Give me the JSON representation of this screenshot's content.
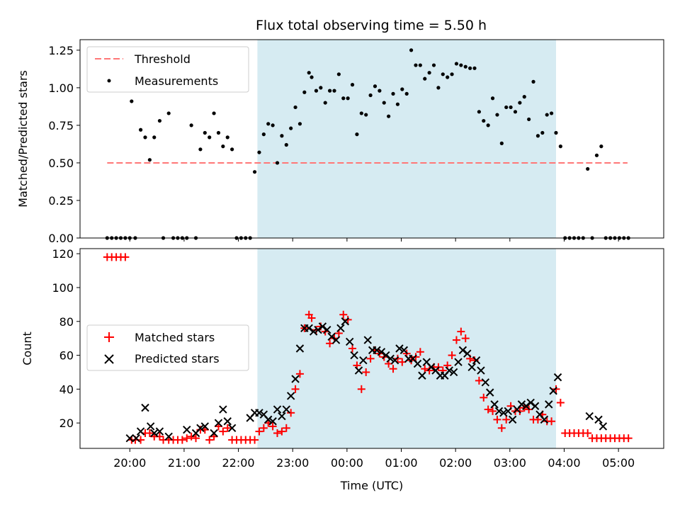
{
  "figure_title": "Flux total observing time = 5.50 h",
  "colors": {
    "threshold": "#ff7777",
    "measurements": "#000000",
    "matched": "#ff0000",
    "predicted": "#000000",
    "span": "#add8e6"
  },
  "chart_data": [
    {
      "type": "scatter",
      "panel": "top",
      "title": "Flux total observing time = 5.50 h",
      "xlabel": "",
      "ylabel": "Matched/Predicted stars",
      "xlim": [
        "19:05",
        "05:50"
      ],
      "ylim": [
        0,
        1.32
      ],
      "yticks": [
        "0.00",
        "0.25",
        "0.50",
        "0.75",
        "1.00",
        "1.25"
      ],
      "grid": false,
      "legend_position": "upper-left",
      "shaded_span": [
        "22:21",
        "03:51"
      ],
      "threshold": {
        "name": "Threshold",
        "y": 0.5,
        "x": [
          "19:35",
          "05:10"
        ],
        "style": "dashed"
      },
      "series": [
        {
          "name": "Measurements",
          "x": [
            "19:35",
            "19:40",
            "19:45",
            "19:50",
            "19:55",
            "20:00",
            "20:02",
            "20:06",
            "20:12",
            "20:17",
            "20:22",
            "20:27",
            "20:33",
            "20:37",
            "20:43",
            "20:48",
            "20:53",
            "20:58",
            "21:03",
            "21:08",
            "21:13",
            "21:18",
            "21:23",
            "21:28",
            "21:33",
            "21:38",
            "21:43",
            "21:48",
            "21:53",
            "21:58",
            "22:03",
            "22:08",
            "22:13",
            "22:18",
            "22:23",
            "22:28",
            "22:33",
            "22:38",
            "22:43",
            "22:48",
            "22:53",
            "22:58",
            "23:03",
            "23:08",
            "23:13",
            "23:18",
            "23:21",
            "23:26",
            "23:31",
            "23:36",
            "23:41",
            "23:46",
            "23:51",
            "23:56",
            "00:01",
            "00:06",
            "00:11",
            "00:16",
            "00:21",
            "00:26",
            "00:31",
            "00:36",
            "00:41",
            "00:46",
            "00:51",
            "00:56",
            "01:01",
            "01:06",
            "01:11",
            "01:16",
            "01:21",
            "01:26",
            "01:31",
            "01:36",
            "01:41",
            "01:46",
            "01:51",
            "01:56",
            "02:01",
            "02:06",
            "02:11",
            "02:16",
            "02:21",
            "02:26",
            "02:31",
            "02:36",
            "02:41",
            "02:46",
            "02:51",
            "02:56",
            "03:01",
            "03:06",
            "03:11",
            "03:16",
            "03:21",
            "03:26",
            "03:31",
            "03:36",
            "03:41",
            "03:46",
            "03:51",
            "03:56",
            "04:01",
            "04:06",
            "04:11",
            "04:16",
            "04:21",
            "04:26",
            "04:31",
            "04:36",
            "04:41",
            "04:46",
            "04:51",
            "04:56",
            "05:01",
            "05:06",
            "05:11"
          ],
          "y": [
            0,
            0,
            0,
            0,
            0,
            0,
            0.91,
            0,
            0.72,
            0.67,
            0.52,
            0.67,
            0.78,
            0,
            0.83,
            0,
            0,
            0,
            0,
            0.75,
            0,
            0.59,
            0.7,
            0.67,
            0.83,
            0.7,
            0.61,
            0.67,
            0.59,
            0,
            0,
            0,
            0,
            0.44,
            0.57,
            0.69,
            0.76,
            0.75,
            0.5,
            0.68,
            0.62,
            0.73,
            0.87,
            0.76,
            0.97,
            1.1,
            1.07,
            0.98,
            1.0,
            0.9,
            0.98,
            0.98,
            1.09,
            0.93,
            0.93,
            1.02,
            0.69,
            0.83,
            0.82,
            0.95,
            1.01,
            0.98,
            0.9,
            0.81,
            0.96,
            0.89,
            0.99,
            0.96,
            1.25,
            1.15,
            1.15,
            1.06,
            1.1,
            1.15,
            1.0,
            1.09,
            1.07,
            1.09,
            1.16,
            1.15,
            1.14,
            1.13,
            1.13,
            0.84,
            0.78,
            0.75,
            0.93,
            0.82,
            0.63,
            0.87,
            0.87,
            0.84,
            0.9,
            0.94,
            0.79,
            1.04,
            0.68,
            0.7,
            0.82,
            0.83,
            0.7,
            0.61,
            0,
            0,
            0,
            0,
            0,
            0.46,
            0,
            0.55,
            0.61,
            0,
            0,
            0,
            0,
            0,
            0
          ]
        }
      ]
    },
    {
      "type": "scatter",
      "panel": "bottom",
      "xlabel": "Time (UTC)",
      "ylabel": "Count",
      "xlim": [
        "19:05",
        "05:50"
      ],
      "ylim": [
        5,
        123
      ],
      "xticks": [
        "20:00",
        "21:00",
        "22:00",
        "23:00",
        "00:00",
        "01:00",
        "02:00",
        "03:00",
        "04:00",
        "05:00"
      ],
      "yticks": [
        "20",
        "40",
        "60",
        "80",
        "100",
        "120"
      ],
      "grid": false,
      "legend_position": "center-left",
      "shaded_span": [
        "22:21",
        "03:51"
      ],
      "series": [
        {
          "name": "Matched stars",
          "marker": "+",
          "x": [
            "19:35",
            "19:40",
            "19:45",
            "19:50",
            "19:55",
            "20:02",
            "20:06",
            "20:12",
            "20:17",
            "20:22",
            "20:27",
            "20:33",
            "20:37",
            "20:43",
            "20:48",
            "20:53",
            "20:58",
            "21:03",
            "21:08",
            "21:13",
            "21:18",
            "21:23",
            "21:28",
            "21:33",
            "21:38",
            "21:43",
            "21:48",
            "21:53",
            "21:58",
            "22:03",
            "22:08",
            "22:13",
            "22:18",
            "22:23",
            "22:28",
            "22:33",
            "22:38",
            "22:43",
            "22:48",
            "22:53",
            "22:58",
            "23:03",
            "23:08",
            "23:13",
            "23:18",
            "23:21",
            "23:26",
            "23:31",
            "23:36",
            "23:41",
            "23:46",
            "23:51",
            "23:56",
            "00:01",
            "00:06",
            "00:11",
            "00:16",
            "00:21",
            "00:26",
            "00:31",
            "00:36",
            "00:41",
            "00:46",
            "00:51",
            "00:56",
            "01:01",
            "01:06",
            "01:11",
            "01:16",
            "01:21",
            "01:26",
            "01:31",
            "01:36",
            "01:41",
            "01:46",
            "01:51",
            "01:56",
            "02:01",
            "02:06",
            "02:11",
            "02:16",
            "02:21",
            "02:26",
            "02:31",
            "02:36",
            "02:41",
            "02:46",
            "02:51",
            "02:56",
            "03:01",
            "03:06",
            "03:11",
            "03:16",
            "03:21",
            "03:26",
            "03:31",
            "03:36",
            "03:41",
            "03:46",
            "03:51",
            "03:56",
            "04:01",
            "04:06",
            "04:11",
            "04:16",
            "04:21",
            "04:26",
            "04:31",
            "04:36",
            "04:41",
            "04:46",
            "04:51",
            "04:56",
            "05:01",
            "05:06",
            "05:11"
          ],
          "y": [
            118,
            118,
            118,
            118,
            118,
            10,
            10,
            10,
            14,
            14,
            12,
            12,
            10,
            10,
            10,
            10,
            10,
            11,
            12,
            11,
            16,
            16,
            10,
            12,
            18,
            15,
            17,
            10,
            10,
            10,
            10,
            10,
            10,
            15,
            17,
            20,
            18,
            14,
            15,
            17,
            26,
            40,
            49,
            76,
            84,
            82,
            75,
            77,
            74,
            67,
            70,
            73,
            84,
            81,
            64,
            54,
            40,
            50,
            58,
            63,
            61,
            59,
            55,
            52,
            58,
            56,
            61,
            57,
            59,
            62,
            52,
            51,
            53,
            53,
            51,
            54,
            60,
            69,
            74,
            70,
            58,
            57,
            45,
            35,
            28,
            27,
            22,
            17,
            22,
            30,
            27,
            27,
            29,
            28,
            22,
            22,
            25,
            21,
            21,
            40,
            32,
            14,
            14,
            14,
            14,
            14,
            14,
            11,
            11,
            11,
            11,
            11,
            11,
            11,
            11,
            11
          ]
        },
        {
          "name": "Predicted stars",
          "marker": "x",
          "x": [
            "20:00",
            "20:07",
            "20:12",
            "20:17",
            "20:23",
            "20:27",
            "20:33",
            "20:43",
            "21:03",
            "21:13",
            "21:18",
            "21:23",
            "21:33",
            "21:38",
            "21:43",
            "21:48",
            "21:53",
            "22:13",
            "22:18",
            "22:23",
            "22:28",
            "22:33",
            "22:38",
            "22:43",
            "22:48",
            "22:53",
            "22:58",
            "23:03",
            "23:08",
            "23:13",
            "23:18",
            "23:23",
            "23:28",
            "23:33",
            "23:38",
            "23:43",
            "23:48",
            "23:53",
            "23:58",
            "00:03",
            "00:08",
            "00:13",
            "00:18",
            "00:23",
            "00:28",
            "00:33",
            "00:38",
            "00:43",
            "00:48",
            "00:53",
            "00:58",
            "01:03",
            "01:08",
            "01:13",
            "01:18",
            "01:23",
            "01:28",
            "01:33",
            "01:38",
            "01:43",
            "01:48",
            "01:53",
            "01:58",
            "02:03",
            "02:08",
            "02:13",
            "02:18",
            "02:23",
            "02:28",
            "02:33",
            "02:38",
            "02:43",
            "02:48",
            "02:53",
            "02:58",
            "03:03",
            "03:08",
            "03:13",
            "03:18",
            "03:23",
            "03:28",
            "03:33",
            "03:38",
            "03:43",
            "03:48",
            "03:53",
            "04:28",
            "04:38",
            "04:43"
          ],
          "y": [
            11,
            11,
            15,
            29,
            18,
            14,
            15,
            12,
            16,
            14,
            17,
            18,
            14,
            20,
            28,
            21,
            17,
            23,
            26,
            26,
            25,
            22,
            21,
            28,
            24,
            28,
            36,
            46,
            64,
            76,
            76,
            74,
            75,
            77,
            75,
            71,
            69,
            76,
            80,
            68,
            60,
            51,
            57,
            69,
            63,
            63,
            62,
            60,
            58,
            57,
            64,
            63,
            58,
            58,
            55,
            48,
            56,
            53,
            51,
            48,
            48,
            51,
            50,
            56,
            63,
            61,
            53,
            57,
            51,
            44,
            38,
            31,
            27,
            26,
            27,
            22,
            28,
            31,
            30,
            32,
            30,
            25,
            22,
            31,
            39,
            47,
            24,
            22,
            18
          ]
        }
      ]
    }
  ]
}
